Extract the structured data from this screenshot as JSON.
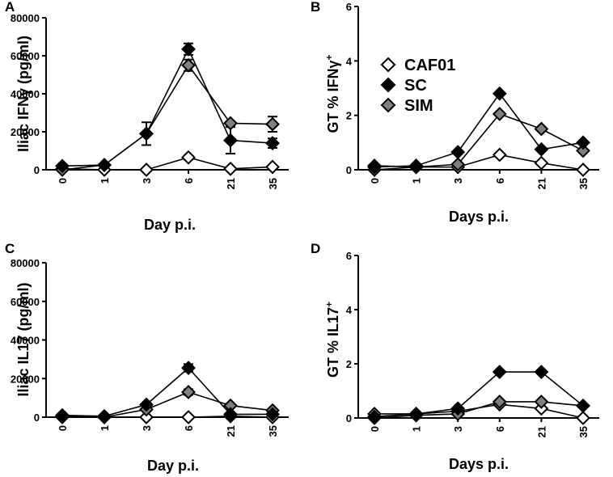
{
  "chart_data": [
    {
      "type": "line",
      "panel_label": "A",
      "ylabel": "Iliac IFNγ (pg/ml)",
      "xlabel": "Day p.i.",
      "categories": [
        "0",
        "1",
        "3",
        "6",
        "21",
        "35"
      ],
      "ylim": [
        0,
        80000
      ],
      "yticks": [
        0,
        20000,
        40000,
        60000,
        80000
      ],
      "ytick_labels": [
        "0",
        "20000",
        "40000",
        "60000",
        "80000"
      ],
      "series": [
        {
          "name": "CAF01",
          "values": [
            500,
            0,
            0,
            6500,
            500,
            1500
          ],
          "err": [
            0,
            0,
            0,
            1000,
            0,
            0
          ]
        },
        {
          "name": "SC",
          "values": [
            2000,
            2500,
            19000,
            63500,
            15500,
            14000
          ],
          "err": [
            0,
            0,
            0,
            3000,
            7000,
            2500
          ]
        },
        {
          "name": "SIM",
          "values": [
            0,
            2500,
            19000,
            55000,
            24500,
            24000
          ],
          "err": [
            0,
            0,
            6000,
            3000,
            0,
            4000
          ]
        }
      ]
    },
    {
      "type": "line",
      "panel_label": "B",
      "ylabel": "GT % IFNγ",
      "ylabel_sup": "+",
      "xlabel": "Days p.i.",
      "categories": [
        "0",
        "1",
        "3",
        "6",
        "21",
        "35"
      ],
      "ylim": [
        0,
        6
      ],
      "yticks": [
        0,
        2,
        4,
        6
      ],
      "ytick_labels": [
        "0",
        "2",
        "4",
        "6"
      ],
      "series": [
        {
          "name": "CAF01",
          "values": [
            0.15,
            0.1,
            0.1,
            0.55,
            0.25,
            0.0
          ],
          "err": [
            0,
            0,
            0,
            0,
            0,
            0
          ]
        },
        {
          "name": "SC",
          "values": [
            0.1,
            0.15,
            0.65,
            2.8,
            0.75,
            1.0
          ],
          "err": [
            0,
            0,
            0,
            0,
            0,
            0
          ]
        },
        {
          "name": "SIM",
          "values": [
            0.0,
            0.1,
            0.2,
            2.05,
            1.5,
            0.7
          ],
          "err": [
            0,
            0,
            0,
            0,
            0,
            0
          ]
        }
      ],
      "legend": {
        "entries": [
          "CAF01",
          "SC",
          "SIM"
        ],
        "placement": "upper-left"
      }
    },
    {
      "type": "line",
      "panel_label": "C",
      "ylabel": "Iliac IL17 (pg/ml)",
      "xlabel": "Day p.i.",
      "categories": [
        "0",
        "1",
        "3",
        "6",
        "21",
        "35"
      ],
      "ylim": [
        0,
        80000
      ],
      "yticks": [
        0,
        20000,
        40000,
        60000,
        80000
      ],
      "ytick_labels": [
        "0",
        "20000",
        "40000",
        "60000",
        "80000"
      ],
      "series": [
        {
          "name": "CAF01",
          "values": [
            0,
            0,
            0,
            0,
            500,
            0
          ],
          "err": [
            0,
            0,
            0,
            0,
            0,
            0
          ]
        },
        {
          "name": "SC",
          "values": [
            1000,
            500,
            6500,
            25500,
            1500,
            1500
          ],
          "err": [
            0,
            0,
            0,
            2000,
            0,
            0
          ]
        },
        {
          "name": "SIM",
          "values": [
            500,
            0,
            4000,
            13000,
            6000,
            3500
          ],
          "err": [
            0,
            0,
            0,
            1500,
            0,
            0
          ]
        }
      ]
    },
    {
      "type": "line",
      "panel_label": "D",
      "ylabel": "GT % IL17",
      "ylabel_sup": "+",
      "xlabel": "Days p.i.",
      "categories": [
        "0",
        "1",
        "3",
        "6",
        "21",
        "35"
      ],
      "ylim": [
        0,
        6
      ],
      "yticks": [
        0,
        2,
        4,
        6
      ],
      "ytick_labels": [
        "0",
        "2",
        "4",
        "6"
      ],
      "series": [
        {
          "name": "CAF01",
          "values": [
            0.15,
            0.15,
            0.25,
            0.5,
            0.35,
            0.0
          ],
          "err": [
            0,
            0,
            0,
            0,
            0,
            0
          ]
        },
        {
          "name": "SC",
          "values": [
            0.05,
            0.15,
            0.35,
            1.7,
            1.7,
            0.45
          ],
          "err": [
            0,
            0,
            0,
            0,
            0,
            0
          ]
        },
        {
          "name": "SIM",
          "values": [
            0.0,
            0.1,
            0.15,
            0.6,
            0.6,
            0.45
          ],
          "err": [
            0,
            0,
            0,
            0,
            0,
            0
          ]
        }
      ]
    }
  ],
  "styles": {
    "CAF01": {
      "fill": "#ffffff",
      "stroke": "#000000"
    },
    "SC": {
      "fill": "#000000",
      "stroke": "#000000"
    },
    "SIM": {
      "fill": "#808080",
      "stroke": "#000000"
    }
  }
}
